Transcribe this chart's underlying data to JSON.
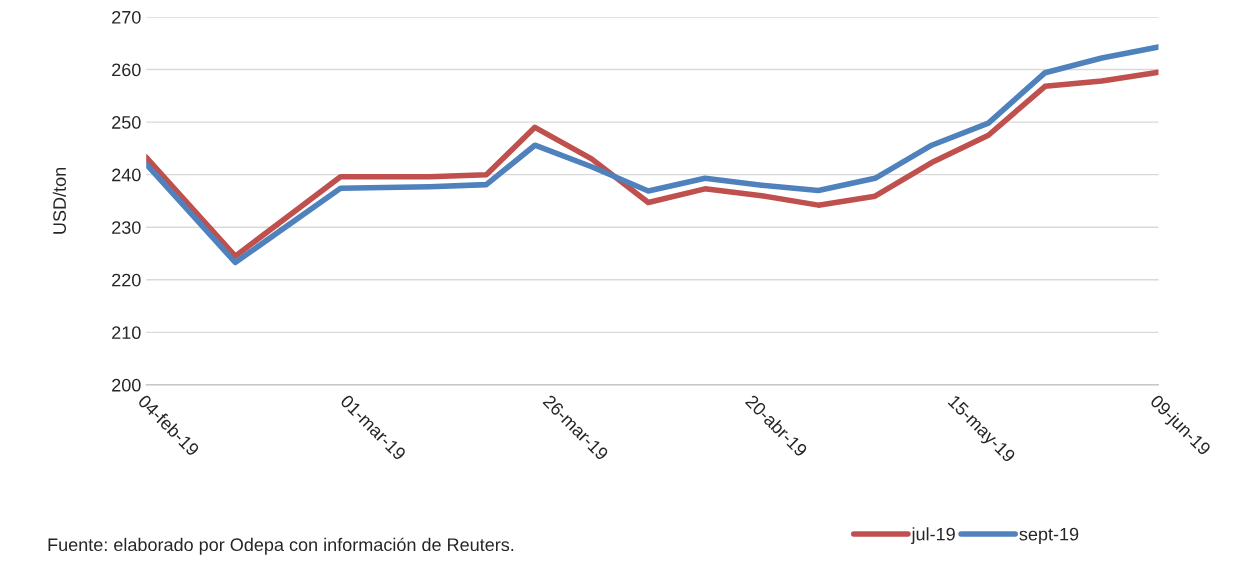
{
  "chart_data": {
    "type": "line",
    "ylabel": "USD/ton",
    "x": [
      "2019-02-04",
      "2019-02-15",
      "2019-02-28",
      "2019-03-11",
      "2019-03-18",
      "2019-03-24",
      "2019-03-31",
      "2019-04-07",
      "2019-04-14",
      "2019-04-21",
      "2019-04-28",
      "2019-05-05",
      "2019-05-12",
      "2019-05-19",
      "2019-05-26",
      "2019-06-02",
      "2019-06-09"
    ],
    "series": [
      {
        "name": "jul-19",
        "color": "#c0504d",
        "values": [
          243.3,
          224.5,
          239.6,
          239.6,
          240,
          249,
          243,
          234.7,
          237.3,
          236,
          234.2,
          235.9,
          242.3,
          247.5,
          256.8,
          257.8,
          259.5
        ]
      },
      {
        "name": "sept-19",
        "color": "#4f81bd",
        "values": [
          242,
          223.3,
          237.4,
          237.7,
          238.1,
          245.6,
          241.5,
          236.9,
          239.3,
          238,
          237,
          239.3,
          245.6,
          249.8,
          259.4,
          262.2,
          264.3
        ]
      }
    ],
    "xlim": [
      "2019-02-04",
      "2019-06-09"
    ],
    "xticks": [
      {
        "value": "2019-02-04",
        "label": "04-feb-19"
      },
      {
        "value": "2019-03-01",
        "label": "01-mar-19"
      },
      {
        "value": "2019-03-26",
        "label": "26-mar-19"
      },
      {
        "value": "2019-04-20",
        "label": "20-abr-19"
      },
      {
        "value": "2019-05-15",
        "label": "15-may-19"
      },
      {
        "value": "2019-06-09",
        "label": "09-jun-19"
      }
    ],
    "ylim": [
      200,
      270
    ],
    "yticks": [
      200,
      210,
      220,
      230,
      240,
      250,
      260,
      270
    ],
    "grid": "y",
    "legend": "bottom right",
    "line_style": "solid",
    "marker": "none",
    "annotations": [
      "Fuente: elaborado por Odepa con información de Reuters."
    ]
  }
}
